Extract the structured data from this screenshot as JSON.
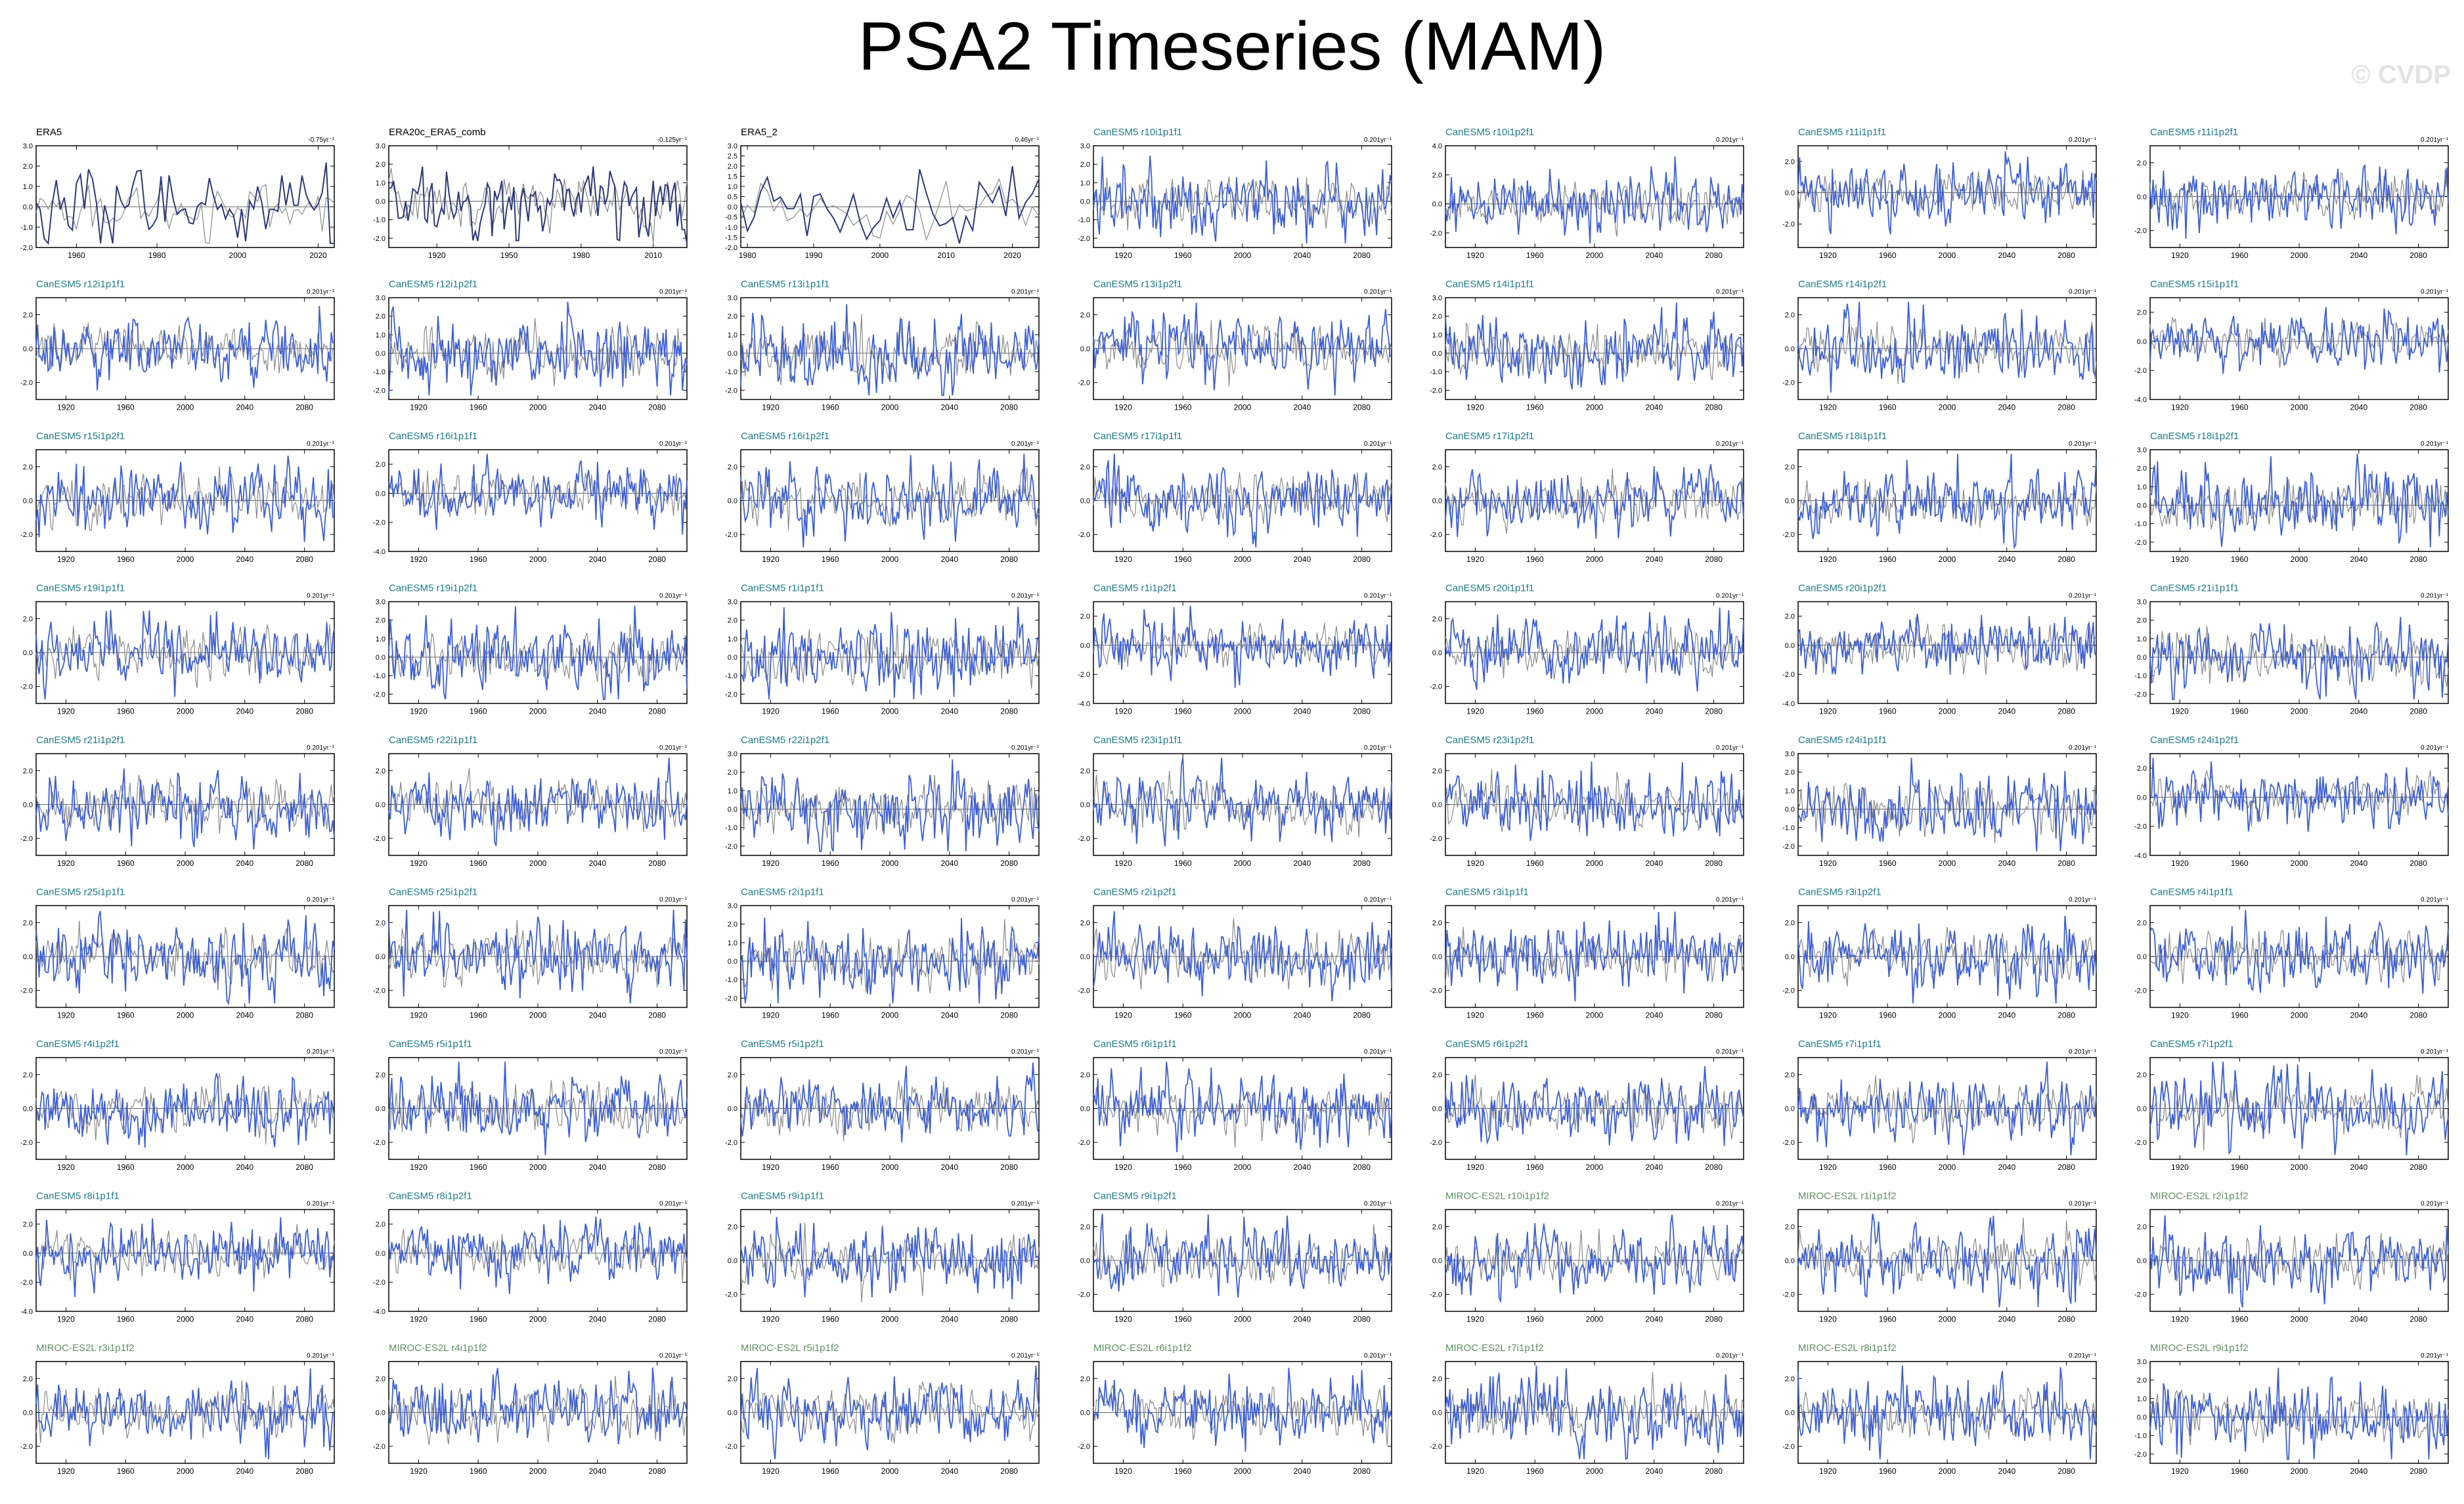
{
  "title": "PSA2 Timeseries (MAM)",
  "watermark": "© CVDP",
  "colors": {
    "observation_title": "#000000",
    "canesm5_title": "#1f7a8c",
    "miroc_title": "#5f8f5f",
    "model_line": "#3d5fd6",
    "mean_line": "#8a8a8a",
    "obs_line": "#2b3a7a",
    "axis": "#000000"
  },
  "chart_data": [
    {
      "type": "line",
      "title": "ERA5",
      "trend": "-0.75yr⁻¹",
      "xlim": [
        1950,
        2024
      ],
      "xticks": [
        1960,
        1980,
        2000,
        2020
      ],
      "yticks": [
        -2.0,
        -1.0,
        0.0,
        1.0,
        2.0,
        3.0
      ],
      "ylim": [
        -2.0,
        3.0
      ],
      "style": "obs"
    },
    {
      "type": "line",
      "title": "ERA20c_ERA5_comb",
      "trend": "-0.125yr⁻¹",
      "xlim": [
        1900,
        2024
      ],
      "xticks": [
        1920,
        1950,
        1980,
        2010
      ],
      "yticks": [
        -2.0,
        -1.0,
        0.0,
        1.0,
        2.0,
        3.0
      ],
      "ylim": [
        -2.5,
        3.0
      ],
      "style": "obs"
    },
    {
      "type": "line",
      "title": "ERA5_2",
      "trend": "0.46yr⁻¹",
      "xlim": [
        1979,
        2024
      ],
      "xticks": [
        1980,
        1990,
        2000,
        2010,
        2020
      ],
      "yticks": [
        -2.0,
        -1.5,
        -1.0,
        -0.5,
        0.0,
        0.5,
        1.0,
        1.5,
        2.0,
        2.5,
        3.0
      ],
      "ylim": [
        -2.0,
        3.0
      ],
      "style": "obs"
    },
    {
      "type": "line",
      "title": "CanESM5 r10i1p1f1",
      "trend": "0.201yr⁻¹",
      "yticks": [
        -2.0,
        -1.0,
        0.0,
        1.0,
        2.0,
        3.0
      ],
      "ylim": [
        -2.5,
        3.0
      ]
    },
    {
      "type": "line",
      "title": "CanESM5 r10i1p2f1",
      "trend": "0.201yr⁻¹",
      "yticks": [
        -2.0,
        0.0,
        2.0,
        4.0
      ],
      "ylim": [
        -3.0,
        4.0
      ]
    },
    {
      "type": "line",
      "title": "CanESM5 r11i1p1f1",
      "trend": "0.201yr⁻¹",
      "yticks": [
        -2.0,
        0.0,
        2.0
      ],
      "ylim": [
        -3.5,
        3.0
      ]
    },
    {
      "type": "line",
      "title": "CanESM5 r11i1p2f1",
      "trend": "0.201yr⁻¹",
      "yticks": [
        -2.0,
        0.0,
        2.0
      ],
      "ylim": [
        -3.0,
        3.0
      ]
    },
    {
      "type": "line",
      "title": "CanESM5 r12i1p1f1",
      "trend": "0.201yr⁻¹",
      "yticks": [
        -2.0,
        0.0,
        2.0
      ],
      "ylim": [
        -3.0,
        3.0
      ]
    },
    {
      "type": "line",
      "title": "CanESM5 r12i1p2f1",
      "trend": "0.201yr⁻¹",
      "yticks": [
        -2.0,
        -1.0,
        0.0,
        1.0,
        2.0,
        3.0
      ],
      "ylim": [
        -2.5,
        3.0
      ]
    },
    {
      "type": "line",
      "title": "CanESM5 r13i1p1f1",
      "trend": "0.201yr⁻¹",
      "yticks": [
        -2.0,
        -1.0,
        0.0,
        1.0,
        2.0,
        3.0
      ],
      "ylim": [
        -2.5,
        3.0
      ]
    },
    {
      "type": "line",
      "title": "CanESM5 r13i1p2f1",
      "trend": "0.201yr⁻¹",
      "yticks": [
        -2.0,
        0.0,
        2.0
      ],
      "ylim": [
        -3.0,
        3.0
      ]
    },
    {
      "type": "line",
      "title": "CanESM5 r14i1p1f1",
      "trend": "0.201yr⁻¹",
      "yticks": [
        -2.0,
        -1.0,
        0.0,
        1.0,
        2.0,
        3.0
      ],
      "ylim": [
        -2.5,
        3.0
      ]
    },
    {
      "type": "line",
      "title": "CanESM5 r14i1p2f1",
      "trend": "0.201yr⁻¹",
      "yticks": [
        -2.0,
        0.0,
        2.0
      ],
      "ylim": [
        -3.0,
        3.0
      ]
    },
    {
      "type": "line",
      "title": "CanESM5 r15i1p1f1",
      "trend": "0.201yr⁻¹",
      "yticks": [
        -4.0,
        -2.0,
        0.0,
        2.0
      ],
      "ylim": [
        -4.0,
        3.0
      ]
    },
    {
      "type": "line",
      "title": "CanESM5 r15i1p2f1",
      "trend": "0.201yr⁻¹",
      "yticks": [
        -2.0,
        0.0,
        2.0
      ],
      "ylim": [
        -3.0,
        3.0
      ]
    },
    {
      "type": "line",
      "title": "CanESM5 r16i1p1f1",
      "trend": "0.201yr⁻¹",
      "yticks": [
        -4.0,
        -2.0,
        0.0,
        2.0
      ],
      "ylim": [
        -4.0,
        3.0
      ]
    },
    {
      "type": "line",
      "title": "CanESM5 r16i1p2f1",
      "trend": "0.201yr⁻¹",
      "yticks": [
        -2.0,
        0.0,
        2.0
      ],
      "ylim": [
        -3.0,
        3.0
      ]
    },
    {
      "type": "line",
      "title": "CanESM5 r17i1p1f1",
      "trend": "0.201yr⁻¹",
      "yticks": [
        -2.0,
        0.0,
        2.0
      ],
      "ylim": [
        -3.0,
        3.0
      ]
    },
    {
      "type": "line",
      "title": "CanESM5 r17i1p2f1",
      "trend": "0.201yr⁻¹",
      "yticks": [
        -2.0,
        0.0,
        2.0
      ],
      "ylim": [
        -3.0,
        3.0
      ]
    },
    {
      "type": "line",
      "title": "CanESM5 r18i1p1f1",
      "trend": "0.201yr⁻¹",
      "yticks": [
        -2.0,
        0.0,
        2.0
      ],
      "ylim": [
        -3.0,
        3.0
      ]
    },
    {
      "type": "line",
      "title": "CanESM5 r18i1p2f1",
      "trend": "0.201yr⁻¹",
      "yticks": [
        -2.0,
        -1.0,
        0.0,
        1.0,
        2.0,
        3.0
      ],
      "ylim": [
        -2.5,
        3.0
      ]
    },
    {
      "type": "line",
      "title": "CanESM5 r19i1p1f1",
      "trend": "0.201yr⁻¹",
      "yticks": [
        -2.0,
        0.0,
        2.0
      ],
      "ylim": [
        -3.0,
        3.0
      ]
    },
    {
      "type": "line",
      "title": "CanESM5 r19i1p2f1",
      "trend": "0.201yr⁻¹",
      "yticks": [
        -2.0,
        -1.0,
        0.0,
        1.0,
        2.0,
        3.0
      ],
      "ylim": [
        -2.5,
        3.0
      ]
    },
    {
      "type": "line",
      "title": "CanESM5 r1i1p1f1",
      "trend": "0.201yr⁻¹",
      "yticks": [
        -2.0,
        -1.0,
        0.0,
        1.0,
        2.0,
        3.0
      ],
      "ylim": [
        -2.5,
        3.0
      ]
    },
    {
      "type": "line",
      "title": "CanESM5 r1i1p2f1",
      "trend": "0.201yr⁻¹",
      "yticks": [
        -4.0,
        -2.0,
        0.0,
        2.0
      ],
      "ylim": [
        -4.0,
        3.0
      ]
    },
    {
      "type": "line",
      "title": "CanESM5 r20i1p1f1",
      "trend": "0.201yr⁻¹",
      "yticks": [
        -2.0,
        0.0,
        2.0
      ],
      "ylim": [
        -3.0,
        3.0
      ]
    },
    {
      "type": "line",
      "title": "CanESM5 r20i1p2f1",
      "trend": "0.201yr⁻¹",
      "yticks": [
        -4.0,
        -2.0,
        0.0,
        2.0
      ],
      "ylim": [
        -4.0,
        3.0
      ]
    },
    {
      "type": "line",
      "title": "CanESM5 r21i1p1f1",
      "trend": "0.201yr⁻¹",
      "yticks": [
        -2.0,
        -1.0,
        0.0,
        1.0,
        2.0,
        3.0
      ],
      "ylim": [
        -2.5,
        3.0
      ]
    },
    {
      "type": "line",
      "title": "CanESM5 r21i1p2f1",
      "trend": "0.201yr⁻¹",
      "yticks": [
        -2.0,
        0.0,
        2.0
      ],
      "ylim": [
        -3.0,
        3.0
      ]
    },
    {
      "type": "line",
      "title": "CanESM5 r22i1p1f1",
      "trend": "0.201yr⁻¹",
      "yticks": [
        -2.0,
        0.0,
        2.0
      ],
      "ylim": [
        -3.0,
        3.0
      ]
    },
    {
      "type": "line",
      "title": "CanESM5 r22i1p2f1",
      "trend": "0.201yr⁻¹",
      "yticks": [
        -2.0,
        -1.0,
        0.0,
        1.0,
        2.0,
        3.0
      ],
      "ylim": [
        -2.5,
        3.0
      ]
    },
    {
      "type": "line",
      "title": "CanESM5 r23i1p1f1",
      "trend": "0.201yr⁻¹",
      "yticks": [
        -2.0,
        0.0,
        2.0
      ],
      "ylim": [
        -3.0,
        3.0
      ]
    },
    {
      "type": "line",
      "title": "CanESM5 r23i1p2f1",
      "trend": "0.201yr⁻¹",
      "yticks": [
        -2.0,
        0.0,
        2.0
      ],
      "ylim": [
        -3.0,
        3.0
      ]
    },
    {
      "type": "line",
      "title": "CanESM5 r24i1p1f1",
      "trend": "0.201yr⁻¹",
      "yticks": [
        -2.0,
        -1.0,
        0.0,
        1.0,
        2.0,
        3.0
      ],
      "ylim": [
        -2.5,
        3.0
      ]
    },
    {
      "type": "line",
      "title": "CanESM5 r24i1p2f1",
      "trend": "0.201yr⁻¹",
      "yticks": [
        -4.0,
        -2.0,
        0.0,
        2.0
      ],
      "ylim": [
        -4.0,
        3.0
      ]
    },
    {
      "type": "line",
      "title": "CanESM5 r25i1p1f1",
      "trend": "0.201yr⁻¹",
      "yticks": [
        -2.0,
        0.0,
        2.0
      ],
      "ylim": [
        -3.0,
        3.0
      ]
    },
    {
      "type": "line",
      "title": "CanESM5 r25i1p2f1",
      "trend": "0.201yr⁻¹",
      "yticks": [
        -2.0,
        0.0,
        2.0
      ],
      "ylim": [
        -3.0,
        3.0
      ]
    },
    {
      "type": "line",
      "title": "CanESM5 r2i1p1f1",
      "trend": "0.201yr⁻¹",
      "yticks": [
        -2.0,
        -1.0,
        0.0,
        1.0,
        2.0,
        3.0
      ],
      "ylim": [
        -2.5,
        3.0
      ]
    },
    {
      "type": "line",
      "title": "CanESM5 r2i1p2f1",
      "trend": "0.201yr⁻¹",
      "yticks": [
        -2.0,
        0.0,
        2.0
      ],
      "ylim": [
        -3.0,
        3.0
      ]
    },
    {
      "type": "line",
      "title": "CanESM5 r3i1p1f1",
      "trend": "0.201yr⁻¹",
      "yticks": [
        -2.0,
        0.0,
        2.0
      ],
      "ylim": [
        -3.0,
        3.0
      ]
    },
    {
      "type": "line",
      "title": "CanESM5 r3i1p2f1",
      "trend": "0.201yr⁻¹",
      "yticks": [
        -2.0,
        0.0,
        2.0
      ],
      "ylim": [
        -3.0,
        3.0
      ]
    },
    {
      "type": "line",
      "title": "CanESM5 r4i1p1f1",
      "trend": "0.201yr⁻¹",
      "yticks": [
        -2.0,
        0.0,
        2.0
      ],
      "ylim": [
        -3.0,
        3.0
      ]
    },
    {
      "type": "line",
      "title": "CanESM5 r4i1p2f1",
      "trend": "0.201yr⁻¹",
      "yticks": [
        -2.0,
        0.0,
        2.0
      ],
      "ylim": [
        -3.0,
        3.0
      ]
    },
    {
      "type": "line",
      "title": "CanESM5 r5i1p1f1",
      "trend": "0.201yr⁻¹",
      "yticks": [
        -2.0,
        0.0,
        2.0
      ],
      "ylim": [
        -3.0,
        3.0
      ]
    },
    {
      "type": "line",
      "title": "CanESM5 r5i1p2f1",
      "trend": "0.201yr⁻¹",
      "yticks": [
        -2.0,
        0.0,
        2.0
      ],
      "ylim": [
        -3.0,
        3.0
      ]
    },
    {
      "type": "line",
      "title": "CanESM5 r6i1p1f1",
      "trend": "0.201yr⁻¹",
      "yticks": [
        -2.0,
        0.0,
        2.0
      ],
      "ylim": [
        -3.0,
        3.0
      ]
    },
    {
      "type": "line",
      "title": "CanESM5 r6i1p2f1",
      "trend": "0.201yr⁻¹",
      "yticks": [
        -2.0,
        0.0,
        2.0
      ],
      "ylim": [
        -3.0,
        3.0
      ]
    },
    {
      "type": "line",
      "title": "CanESM5 r7i1p1f1",
      "trend": "0.201yr⁻¹",
      "yticks": [
        -2.0,
        0.0,
        2.0
      ],
      "ylim": [
        -3.0,
        3.0
      ]
    },
    {
      "type": "line",
      "title": "CanESM5 r7i1p2f1",
      "trend": "0.201yr⁻¹",
      "yticks": [
        -2.0,
        0.0,
        2.0
      ],
      "ylim": [
        -3.0,
        3.0
      ]
    },
    {
      "type": "line",
      "title": "CanESM5 r8i1p1f1",
      "trend": "0.201yr⁻¹",
      "yticks": [
        -4.0,
        -2.0,
        0.0,
        2.0
      ],
      "ylim": [
        -4.0,
        3.0
      ]
    },
    {
      "type": "line",
      "title": "CanESM5 r8i1p2f1",
      "trend": "0.201yr⁻¹",
      "yticks": [
        -4.0,
        -2.0,
        0.0,
        2.0
      ],
      "ylim": [
        -4.0,
        3.0
      ]
    },
    {
      "type": "line",
      "title": "CanESM5 r9i1p1f1",
      "trend": "0.201yr⁻¹",
      "yticks": [
        -2.0,
        0.0,
        2.0
      ],
      "ylim": [
        -3.0,
        3.0
      ]
    },
    {
      "type": "line",
      "title": "CanESM5 r9i1p2f1",
      "trend": "0.201yr⁻¹",
      "yticks": [
        -2.0,
        0.0,
        2.0
      ],
      "ylim": [
        -3.0,
        3.0
      ]
    },
    {
      "type": "line",
      "title": "MIROC-ES2L r10i1p1f2",
      "trend": "0.201yr⁻¹",
      "yticks": [
        -2.0,
        0.0,
        2.0
      ],
      "ylim": [
        -3.0,
        3.0
      ]
    },
    {
      "type": "line",
      "title": "MIROC-ES2L r1i1p1f2",
      "trend": "0.201yr⁻¹",
      "yticks": [
        -2.0,
        0.0,
        2.0
      ],
      "ylim": [
        -3.0,
        3.0
      ]
    },
    {
      "type": "line",
      "title": "MIROC-ES2L r2i1p1f2",
      "trend": "0.201yr⁻¹",
      "yticks": [
        -2.0,
        0.0,
        2.0
      ],
      "ylim": [
        -3.0,
        3.0
      ]
    },
    {
      "type": "line",
      "title": "MIROC-ES2L r3i1p1f2",
      "trend": "0.201yr⁻¹",
      "yticks": [
        -2.0,
        0.0,
        2.0
      ],
      "ylim": [
        -3.0,
        3.0
      ]
    },
    {
      "type": "line",
      "title": "MIROC-ES2L r4i1p1f2",
      "trend": "0.201yr⁻¹",
      "yticks": [
        -2.0,
        0.0,
        2.0
      ],
      "ylim": [
        -3.0,
        3.0
      ]
    },
    {
      "type": "line",
      "title": "MIROC-ES2L r5i1p1f2",
      "trend": "0.201yr⁻¹",
      "yticks": [
        -2.0,
        0.0,
        2.0
      ],
      "ylim": [
        -3.0,
        3.0
      ]
    },
    {
      "type": "line",
      "title": "MIROC-ES2L r6i1p1f2",
      "trend": "0.201yr⁻¹",
      "yticks": [
        -2.0,
        0.0,
        2.0
      ],
      "ylim": [
        -3.0,
        3.0
      ]
    },
    {
      "type": "line",
      "title": "MIROC-ES2L r7i1p1f2",
      "trend": "0.201yr⁻¹",
      "yticks": [
        -2.0,
        0.0,
        2.0
      ],
      "ylim": [
        -3.0,
        3.0
      ]
    },
    {
      "type": "line",
      "title": "MIROC-ES2L r8i1p1f2",
      "trend": "0.201yr⁻¹",
      "yticks": [
        -2.0,
        0.0,
        2.0
      ],
      "ylim": [
        -3.0,
        3.0
      ]
    },
    {
      "type": "line",
      "title": "MIROC-ES2L r9i1p1f2",
      "trend": "0.201yr⁻¹",
      "yticks": [
        -2.0,
        -1.0,
        0.0,
        1.0,
        2.0,
        3.0
      ],
      "ylim": [
        -2.5,
        3.0
      ]
    }
  ],
  "model_xlim": [
    1900,
    2100
  ],
  "model_xticks": [
    1920,
    1960,
    2000,
    2040,
    2080
  ]
}
